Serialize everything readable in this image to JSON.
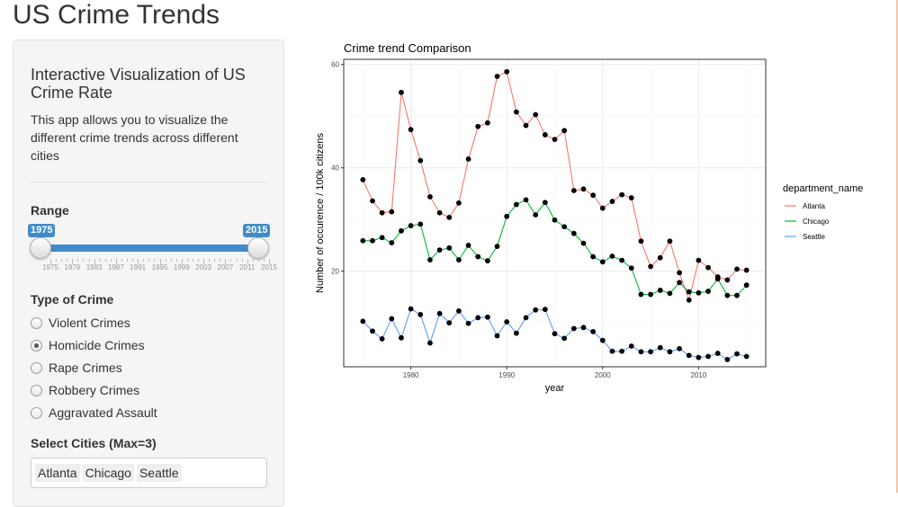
{
  "app": {
    "title": "US Crime Trends"
  },
  "sidebar": {
    "heading": "Interactive Visualization of US Crime Rate",
    "description": "This app allows you to visualize the different crime trends across different cities",
    "range": {
      "label": "Range",
      "min": 1975,
      "max": 2015,
      "from": 1975,
      "to": 2015,
      "from_label": "1975",
      "to_label": "2015",
      "tick_labels": [
        "1975",
        "1979",
        "1983",
        "1987",
        "1991",
        "1995",
        "1999",
        "2003",
        "2007",
        "2011",
        "2015"
      ]
    },
    "crime_type": {
      "label": "Type of Crime",
      "options": [
        "Violent Crimes",
        "Homicide Crimes",
        "Rape Crimes",
        "Robbery Crimes",
        "Aggravated Assault"
      ],
      "selected": "Homicide Crimes"
    },
    "cities": {
      "label": "Select Cities (Max=3)",
      "selected": [
        "Atlanta",
        "Chicago",
        "Seattle"
      ]
    }
  },
  "chart_data": {
    "type": "line",
    "title": "Crime trend Comparison",
    "xlabel": "year",
    "ylabel": "Number of occurence / 100k citizens",
    "xlim": [
      1973,
      2017
    ],
    "ylim": [
      1.5,
      61
    ],
    "xticks": [
      1980,
      1990,
      2000,
      2010
    ],
    "yticks": [
      20,
      40,
      60
    ],
    "grid": true,
    "legend": {
      "title": "department_name",
      "position": "right"
    },
    "x": [
      1975,
      1976,
      1977,
      1978,
      1979,
      1980,
      1981,
      1982,
      1983,
      1984,
      1985,
      1986,
      1987,
      1988,
      1989,
      1990,
      1991,
      1992,
      1993,
      1994,
      1995,
      1996,
      1997,
      1998,
      1999,
      2000,
      2001,
      2002,
      2003,
      2004,
      2005,
      2006,
      2007,
      2008,
      2009,
      2010,
      2011,
      2012,
      2013,
      2014,
      2015
    ],
    "series": [
      {
        "name": "Atlanta",
        "color": "#F8766D",
        "values": [
          37.7,
          33.6,
          31.3,
          31.5,
          54.6,
          47.4,
          41.4,
          34.4,
          31.3,
          30.4,
          33.2,
          41.7,
          48.0,
          48.7,
          57.7,
          58.6,
          50.8,
          48.2,
          50.3,
          46.4,
          45.5,
          47.2,
          35.6,
          35.9,
          34.7,
          32.2,
          33.5,
          34.8,
          34.2,
          25.8,
          20.9,
          22.6,
          25.8,
          19.7,
          14.4,
          22.1,
          20.7,
          18.9,
          18.3,
          20.4,
          20.2
        ]
      },
      {
        "name": "Chicago",
        "color": "#00BA38",
        "values": [
          25.9,
          25.9,
          26.5,
          25.5,
          27.8,
          28.8,
          29.1,
          22.2,
          24.1,
          24.5,
          22.2,
          25.0,
          22.8,
          22.0,
          24.8,
          30.6,
          32.9,
          33.8,
          30.9,
          33.3,
          29.9,
          28.6,
          27.3,
          25.4,
          22.8,
          21.8,
          22.9,
          22.1,
          20.6,
          15.5,
          15.5,
          16.3,
          15.7,
          17.8,
          16.0,
          15.8,
          16.1,
          18.5,
          15.3,
          15.3,
          17.3
        ]
      },
      {
        "name": "Seattle",
        "color": "#619CFF",
        "values": [
          10.3,
          8.4,
          6.9,
          10.8,
          7.1,
          12.7,
          11.6,
          6.1,
          11.8,
          10.0,
          12.3,
          9.9,
          11.0,
          11.1,
          7.5,
          10.2,
          8.0,
          11.0,
          12.5,
          12.6,
          7.9,
          7.0,
          8.9,
          9.1,
          8.3,
          6.6,
          4.5,
          4.5,
          5.5,
          4.4,
          4.4,
          5.2,
          4.4,
          5.0,
          3.7,
          3.3,
          3.5,
          4.1,
          2.9,
          4.0,
          3.5
        ]
      }
    ]
  }
}
